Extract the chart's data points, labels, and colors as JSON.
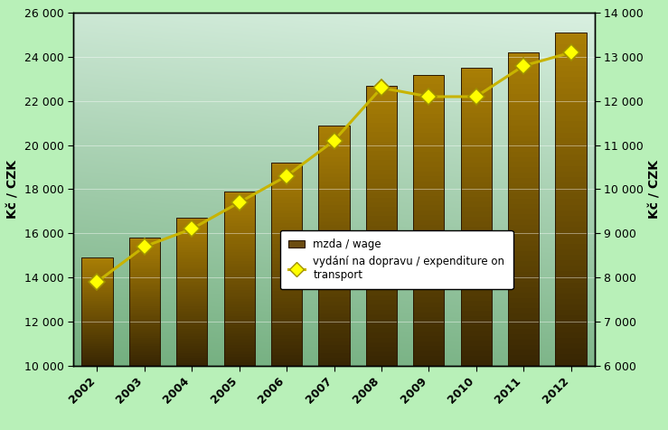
{
  "years": [
    2002,
    2003,
    2004,
    2005,
    2006,
    2007,
    2008,
    2009,
    2010,
    2011,
    2012
  ],
  "wage": [
    14900,
    15800,
    16700,
    17900,
    19200,
    20900,
    22700,
    23200,
    23500,
    24200,
    25100
  ],
  "transport": [
    7900,
    8700,
    9100,
    9700,
    10300,
    11100,
    12300,
    12100,
    12100,
    12800,
    13100
  ],
  "line_color": "#c8b400",
  "marker_facecolor": "#ffff00",
  "marker_edgecolor": "#a09000",
  "background_outer": "#b8f0b8",
  "ylim_left": [
    10000,
    26000
  ],
  "ylim_right": [
    6000,
    14000
  ],
  "yticks_left": [
    10000,
    12000,
    14000,
    16000,
    18000,
    20000,
    22000,
    24000,
    26000
  ],
  "yticks_right": [
    6000,
    7000,
    8000,
    9000,
    10000,
    11000,
    12000,
    13000,
    14000
  ],
  "ylabel_left": "Kč / CZK",
  "ylabel_right": "Kč / CZK",
  "legend_wage": "mzda / wage",
  "legend_transport": "vydání na dopravu / expenditure on\ntransport",
  "figwidth": 7.39,
  "figheight": 4.76,
  "dpi": 100
}
